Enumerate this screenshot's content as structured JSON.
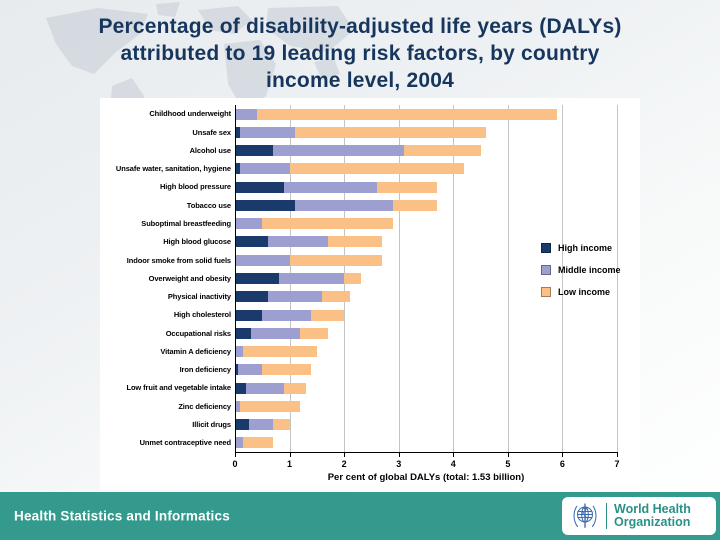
{
  "header": {
    "title_lines": [
      "Percentage of disability-adjusted life years (DALYs)",
      "attributed to 19 leading risk factors, by country",
      "income level, 2004"
    ]
  },
  "chart_data": {
    "type": "bar",
    "orientation": "horizontal",
    "stacked": true,
    "title": "Percentage of disability-adjusted life years (DALYs) attributed to 19 leading risk factors, by country income level, 2004",
    "xlabel": "Per cent of global DALYs (total: 1.53 billion)",
    "xlim": [
      0,
      7
    ],
    "xticks": [
      0,
      1,
      2,
      3,
      4,
      5,
      6,
      7
    ],
    "grid": "vertical",
    "legend_position": "right",
    "categories": [
      "Childhood underweight",
      "Unsafe sex",
      "Alcohol use",
      "Unsafe water, sanitation, hygiene",
      "High blood pressure",
      "Tobacco use",
      "Suboptimal breastfeeding",
      "High blood glucose",
      "Indoor smoke from solid fuels",
      "Overweight and obesity",
      "Physical inactivity",
      "High cholesterol",
      "Occupational risks",
      "Vitamin A deficiency",
      "Iron deficiency",
      "Low fruit and vegetable intake",
      "Zinc deficiency",
      "Illicit drugs",
      "Unmet contraceptive need"
    ],
    "series": [
      {
        "name": "High income",
        "color": "#1a3a6b",
        "values": [
          0.0,
          0.1,
          0.7,
          0.1,
          0.9,
          1.1,
          0.0,
          0.6,
          0.0,
          0.8,
          0.6,
          0.5,
          0.3,
          0.0,
          0.05,
          0.2,
          0.0,
          0.25,
          0.0
        ]
      },
      {
        "name": "Middle income",
        "color": "#9c9fd0",
        "values": [
          0.4,
          1.0,
          2.4,
          0.9,
          1.7,
          1.8,
          0.5,
          1.1,
          1.0,
          1.2,
          1.0,
          0.9,
          0.9,
          0.15,
          0.45,
          0.7,
          0.1,
          0.45,
          0.15
        ]
      },
      {
        "name": "Low income",
        "color": "#fac085",
        "values": [
          5.5,
          3.5,
          1.4,
          3.2,
          1.1,
          0.8,
          2.4,
          1.0,
          1.7,
          0.3,
          0.5,
          0.6,
          0.5,
          1.35,
          0.9,
          0.4,
          1.1,
          0.3,
          0.55
        ]
      }
    ]
  },
  "footer": {
    "left_text": "Health Statistics and Informatics",
    "who_logo": {
      "line1": "World Health",
      "line2": "Organization"
    }
  },
  "colors": {
    "title_navy": "#17365d",
    "footer_teal": "#339a8d",
    "who_blue": "#3b6bb0",
    "high_income": "#1a3a6b",
    "middle_income": "#9c9fd0",
    "low_income": "#fac085"
  }
}
